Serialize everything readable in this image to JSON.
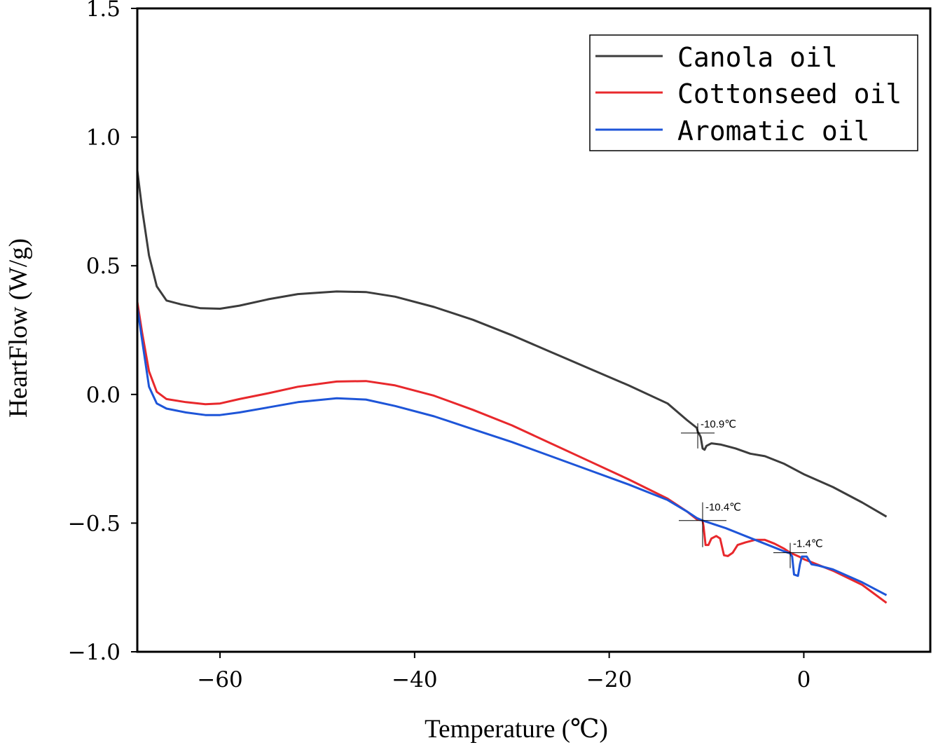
{
  "chart_data": {
    "type": "line",
    "title": "",
    "xlabel": "Temperature (℃)",
    "ylabel": "HeartFlow (W/g)",
    "xlim": [
      -68.5,
      13
    ],
    "ylim": [
      -1.0,
      1.5
    ],
    "x_ticks": [
      -60,
      -40,
      -20,
      0
    ],
    "x_tick_labels": [
      "−60",
      "−40",
      "−20",
      "0"
    ],
    "y_ticks": [
      1.5,
      1.0,
      0.5,
      0.0,
      -0.5,
      -1.0
    ],
    "y_tick_labels": [
      "1.5",
      "1.0",
      "0.5",
      "0.0",
      "−0.5",
      "−1.0"
    ],
    "grid": false,
    "legend_position": "top-right",
    "series": [
      {
        "name": "Canola oil",
        "color": "#3c3c3c",
        "points": [
          [
            -68.5,
            0.87
          ],
          [
            -68,
            0.72
          ],
          [
            -67.3,
            0.54
          ],
          [
            -66.5,
            0.42
          ],
          [
            -65.5,
            0.365
          ],
          [
            -64,
            0.35
          ],
          [
            -62,
            0.335
          ],
          [
            -60,
            0.333
          ],
          [
            -58,
            0.345
          ],
          [
            -55,
            0.37
          ],
          [
            -52,
            0.39
          ],
          [
            -48,
            0.4
          ],
          [
            -45,
            0.398
          ],
          [
            -42,
            0.38
          ],
          [
            -38,
            0.34
          ],
          [
            -34,
            0.29
          ],
          [
            -30,
            0.23
          ],
          [
            -26,
            0.165
          ],
          [
            -22,
            0.1
          ],
          [
            -18,
            0.035
          ],
          [
            -14,
            -0.035
          ],
          [
            -12,
            -0.1
          ],
          [
            -11,
            -0.13
          ],
          [
            -10.9,
            -0.145
          ],
          [
            -10.8,
            -0.15
          ],
          [
            -10.6,
            -0.165
          ],
          [
            -10.4,
            -0.21
          ],
          [
            -10.2,
            -0.215
          ],
          [
            -10,
            -0.2
          ],
          [
            -9.5,
            -0.19
          ],
          [
            -8.5,
            -0.195
          ],
          [
            -7,
            -0.21
          ],
          [
            -5.5,
            -0.23
          ],
          [
            -4,
            -0.24
          ],
          [
            -2,
            -0.27
          ],
          [
            0,
            -0.31
          ],
          [
            3,
            -0.36
          ],
          [
            6,
            -0.42
          ],
          [
            8.5,
            -0.475
          ]
        ]
      },
      {
        "name": "Cottonseed oil",
        "color": "#e8282c",
        "points": [
          [
            -68.5,
            0.36
          ],
          [
            -68,
            0.24
          ],
          [
            -67.3,
            0.09
          ],
          [
            -66.5,
            0.01
          ],
          [
            -65.5,
            -0.018
          ],
          [
            -63.5,
            -0.03
          ],
          [
            -61.5,
            -0.038
          ],
          [
            -60,
            -0.035
          ],
          [
            -58,
            -0.018
          ],
          [
            -55,
            0.005
          ],
          [
            -52,
            0.03
          ],
          [
            -48,
            0.05
          ],
          [
            -45,
            0.052
          ],
          [
            -42,
            0.035
          ],
          [
            -38,
            -0.005
          ],
          [
            -34,
            -0.06
          ],
          [
            -30,
            -0.12
          ],
          [
            -26,
            -0.19
          ],
          [
            -22,
            -0.26
          ],
          [
            -18,
            -0.33
          ],
          [
            -14,
            -0.405
          ],
          [
            -12,
            -0.455
          ],
          [
            -11,
            -0.485
          ],
          [
            -10.4,
            -0.49
          ],
          [
            -10.3,
            -0.515
          ],
          [
            -10.1,
            -0.585
          ],
          [
            -9.8,
            -0.585
          ],
          [
            -9.5,
            -0.56
          ],
          [
            -9,
            -0.55
          ],
          [
            -8.6,
            -0.56
          ],
          [
            -8.2,
            -0.625
          ],
          [
            -7.8,
            -0.628
          ],
          [
            -7.3,
            -0.615
          ],
          [
            -6.8,
            -0.585
          ],
          [
            -6,
            -0.575
          ],
          [
            -5,
            -0.565
          ],
          [
            -4,
            -0.565
          ],
          [
            -3,
            -0.58
          ],
          [
            -2,
            -0.6
          ],
          [
            -1.4,
            -0.615
          ],
          [
            -0.5,
            -0.63
          ],
          [
            0,
            -0.64
          ],
          [
            1,
            -0.655
          ],
          [
            3,
            -0.685
          ],
          [
            6,
            -0.74
          ],
          [
            8.5,
            -0.81
          ]
        ]
      },
      {
        "name": "Aromatic oil",
        "color": "#1e55d8",
        "points": [
          [
            -68.5,
            0.34
          ],
          [
            -68,
            0.21
          ],
          [
            -67.3,
            0.03
          ],
          [
            -66.5,
            -0.035
          ],
          [
            -65.5,
            -0.055
          ],
          [
            -63.5,
            -0.07
          ],
          [
            -61.5,
            -0.08
          ],
          [
            -60,
            -0.08
          ],
          [
            -58,
            -0.07
          ],
          [
            -55,
            -0.05
          ],
          [
            -52,
            -0.03
          ],
          [
            -48,
            -0.015
          ],
          [
            -45,
            -0.02
          ],
          [
            -42,
            -0.045
          ],
          [
            -38,
            -0.085
          ],
          [
            -34,
            -0.135
          ],
          [
            -30,
            -0.185
          ],
          [
            -26,
            -0.24
          ],
          [
            -22,
            -0.295
          ],
          [
            -18,
            -0.35
          ],
          [
            -14,
            -0.41
          ],
          [
            -12,
            -0.455
          ],
          [
            -11,
            -0.48
          ],
          [
            -10.4,
            -0.49
          ],
          [
            -8,
            -0.52
          ],
          [
            -6,
            -0.55
          ],
          [
            -4,
            -0.58
          ],
          [
            -2,
            -0.61
          ],
          [
            -1.4,
            -0.618
          ],
          [
            -1.2,
            -0.63
          ],
          [
            -1.0,
            -0.7
          ],
          [
            -0.6,
            -0.705
          ],
          [
            -0.4,
            -0.66
          ],
          [
            -0.2,
            -0.63
          ],
          [
            0.3,
            -0.63
          ],
          [
            0.8,
            -0.66
          ],
          [
            1.5,
            -0.665
          ],
          [
            3,
            -0.68
          ],
          [
            6,
            -0.73
          ],
          [
            8.5,
            -0.78
          ]
        ]
      }
    ],
    "annotations": [
      {
        "label": "-10.9℃",
        "x": -10.9,
        "y": -0.15,
        "series": "Canola oil"
      },
      {
        "label": "-10.4℃",
        "x": -10.4,
        "y": -0.49,
        "series": "Cottonseed oil"
      },
      {
        "label": "-1.4℃",
        "x": -1.4,
        "y": -0.615,
        "series": "Aromatic oil"
      }
    ]
  }
}
